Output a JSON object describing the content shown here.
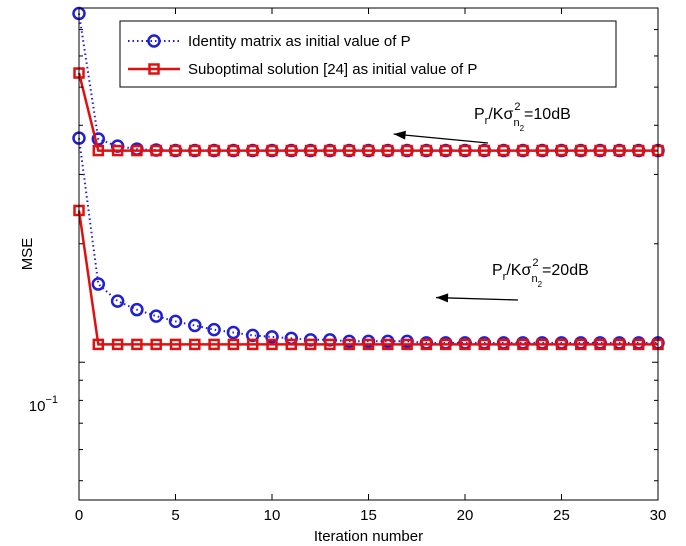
{
  "chart_data": {
    "type": "line",
    "title": "",
    "xlabel": "Iteration number",
    "ylabel": "MSE",
    "xlim": [
      0,
      30
    ],
    "ylim_log10": [
      -1.35,
      -0.1
    ],
    "y_scale": "log",
    "grid": false,
    "legend_position": "top-left",
    "x_ticks": [
      0,
      5,
      10,
      15,
      20,
      25,
      30
    ],
    "x_tick_labels": [
      "0",
      "5",
      "10",
      "15",
      "20",
      "25",
      "30"
    ],
    "y_ticks": [
      0.1
    ],
    "y_tick_label": {
      "base": "10",
      "exponent": "−1"
    },
    "series": [
      {
        "name": "Identity matrix as initial value of P",
        "color": "#1f1fd6",
        "line_style": "dotted",
        "marker": "circle",
        "groups": [
          {
            "x": [
              0,
              1,
              2,
              3,
              4,
              5,
              6,
              7,
              8,
              9,
              10,
              11,
              12,
              13,
              14,
              15,
              16,
              17,
              18,
              19,
              20,
              21,
              22,
              23,
              24,
              25,
              26,
              27,
              28,
              29,
              30
            ],
            "y": [
              0.769,
              0.369,
              0.354,
              0.348,
              0.346,
              0.345,
              0.345,
              0.345,
              0.345,
              0.345,
              0.345,
              0.345,
              0.345,
              0.345,
              0.345,
              0.345,
              0.345,
              0.345,
              0.345,
              0.345,
              0.345,
              0.345,
              0.345,
              0.345,
              0.345,
              0.345,
              0.345,
              0.345,
              0.345,
              0.345,
              0.345
            ]
          },
          {
            "x": [
              0,
              1,
              2,
              3,
              4,
              5,
              6,
              7,
              8,
              9,
              10,
              11,
              12,
              13,
              14,
              15,
              16,
              17,
              18,
              19,
              20,
              21,
              22,
              23,
              24,
              25,
              26,
              27,
              28,
              29,
              30
            ],
            "y": [
              0.371,
              0.158,
              0.143,
              0.136,
              0.131,
              0.127,
              0.124,
              0.121,
              0.119,
              0.117,
              0.116,
              0.115,
              0.114,
              0.114,
              0.113,
              0.113,
              0.113,
              0.113,
              0.112,
              0.112,
              0.112,
              0.112,
              0.112,
              0.112,
              0.112,
              0.112,
              0.112,
              0.112,
              0.112,
              0.112,
              0.112
            ]
          }
        ]
      },
      {
        "name": "Suboptimal solution [24] as initial value of P",
        "color": "#e01010",
        "line_style": "solid",
        "marker": "square",
        "groups": [
          {
            "x": [
              0,
              1,
              2,
              3,
              4,
              5,
              6,
              7,
              8,
              9,
              10,
              11,
              12,
              13,
              14,
              15,
              16,
              17,
              18,
              19,
              20,
              21,
              22,
              23,
              24,
              25,
              26,
              27,
              28,
              29,
              30
            ],
            "y": [
              0.543,
              0.345,
              0.345,
              0.345,
              0.345,
              0.345,
              0.345,
              0.345,
              0.345,
              0.345,
              0.345,
              0.345,
              0.345,
              0.345,
              0.345,
              0.345,
              0.345,
              0.345,
              0.345,
              0.345,
              0.345,
              0.345,
              0.345,
              0.345,
              0.345,
              0.345,
              0.345,
              0.345,
              0.345,
              0.345,
              0.345
            ]
          },
          {
            "x": [
              0,
              1,
              2,
              3,
              4,
              5,
              6,
              7,
              8,
              9,
              10,
              11,
              12,
              13,
              14,
              15,
              16,
              17,
              18,
              19,
              20,
              21,
              22,
              23,
              24,
              25,
              26,
              27,
              28,
              29,
              30
            ],
            "y": [
              0.243,
              0.111,
              0.111,
              0.111,
              0.111,
              0.111,
              0.111,
              0.111,
              0.111,
              0.111,
              0.111,
              0.111,
              0.111,
              0.111,
              0.111,
              0.111,
              0.111,
              0.111,
              0.111,
              0.111,
              0.111,
              0.111,
              0.111,
              0.111,
              0.111,
              0.111,
              0.111,
              0.111,
              0.111,
              0.111,
              0.111
            ]
          }
        ]
      }
    ],
    "annotations": [
      {
        "text_parts": [
          "P",
          "r",
          "/Kσ",
          "2",
          "n",
          "2",
          "=10dB"
        ],
        "arrow_to": {
          "x": 16.3,
          "y": 0.38
        }
      },
      {
        "text_parts": [
          "P",
          "r",
          "/Kσ",
          "2",
          "n",
          "2",
          "=20dB"
        ],
        "arrow_to": {
          "x": 18.5,
          "y": 0.146
        }
      }
    ]
  }
}
